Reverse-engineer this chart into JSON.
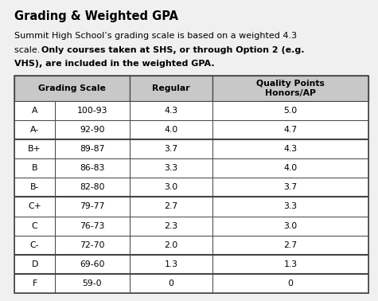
{
  "title": "Grading & Weighted GPA",
  "line1_normal": "Summit High School’s grading scale is based on a weighted 4.3",
  "line2_normal": "scale. ",
  "line2_bold": "Only courses taken at SHS, or through Option 2 (e.g.",
  "line3_bold": "VHS), are included in the weighted GPA.",
  "col_headers": [
    "Grading Scale",
    "Regular",
    "Quality Points\nHonors/AP"
  ],
  "rows": [
    [
      "A",
      "100-93",
      "4.3",
      "5.0"
    ],
    [
      "A-",
      "92-90",
      "4.0",
      "4.7"
    ],
    [
      "B+",
      "89-87",
      "3.7",
      "4.3"
    ],
    [
      "B",
      "86-83",
      "3.3",
      "4.0"
    ],
    [
      "B-",
      "82-80",
      "3.0",
      "3.7"
    ],
    [
      "C+",
      "79-77",
      "2.7",
      "3.3"
    ],
    [
      "C",
      "76-73",
      "2.3",
      "3.0"
    ],
    [
      "C-",
      "72-70",
      "2.0",
      "2.7"
    ],
    [
      "D",
      "69-60",
      "1.3",
      "1.3"
    ],
    [
      "F",
      "59-0",
      "0",
      "0"
    ]
  ],
  "header_bg": "#c8c8c8",
  "bg_color": "#f0f0f0",
  "border_color": "#444444",
  "text_color": "#000000",
  "group_borders_after": [
    1,
    4,
    7,
    8
  ],
  "fig_width": 4.75,
  "fig_height": 3.78,
  "title_fontsize": 10.5,
  "body_fontsize": 8.0,
  "table_fontsize": 7.8
}
